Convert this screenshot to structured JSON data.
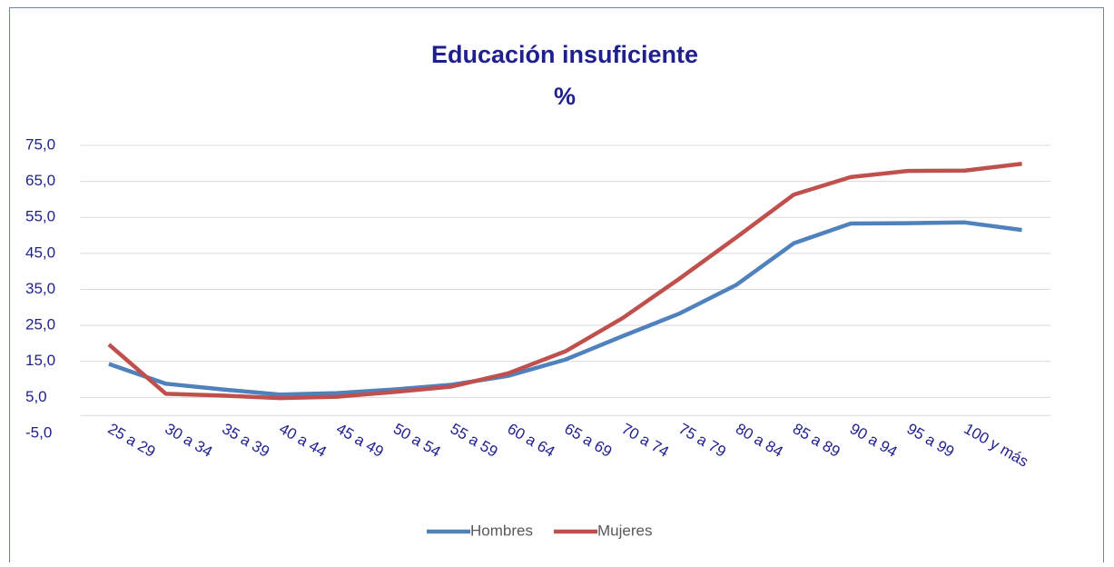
{
  "chart_data": {
    "type": "line",
    "title": "Educación insuficiente",
    "subtitle": "%",
    "categories": [
      "25 a 29",
      "30 a 34",
      "35 a 39",
      "40 a 44",
      "45 a 49",
      "50 a 54",
      "55 a 59",
      "60 a 64",
      "65 a 69",
      "70 a 74",
      "75 a 79",
      "80 a 84",
      "85 a 89",
      "90 a 94",
      "95 a 99",
      "100 y más",
      null
    ],
    "series": [
      {
        "name": "Hombres",
        "color": "#4f81bd",
        "values": [
          14.3,
          8.8,
          7.2,
          5.8,
          6.2,
          7.2,
          8.5,
          11.0,
          15.5,
          22.0,
          28.3,
          36.3,
          47.8,
          53.3,
          53.4,
          53.6,
          51.5
        ]
      },
      {
        "name": "Mujeres",
        "color": "#c0504d",
        "values": [
          19.7,
          6.0,
          5.5,
          4.8,
          5.2,
          6.5,
          8.0,
          11.7,
          17.8,
          27.0,
          38.0,
          49.5,
          61.3,
          66.2,
          67.9,
          68.0,
          69.9
        ]
      }
    ],
    "ylim": [
      -5,
      75
    ],
    "yticks": [
      {
        "value": -5,
        "label": "-5,0"
      },
      {
        "value": 5,
        "label": "5,0"
      },
      {
        "value": 15,
        "label": "15,0"
      },
      {
        "value": 25,
        "label": "25,0"
      },
      {
        "value": 35,
        "label": "35,0"
      },
      {
        "value": 45,
        "label": "45,0"
      },
      {
        "value": 55,
        "label": "55,0"
      },
      {
        "value": 65,
        "label": "65,0"
      },
      {
        "value": 75,
        "label": "75,0"
      }
    ],
    "grid": true,
    "legend": "bottom"
  }
}
